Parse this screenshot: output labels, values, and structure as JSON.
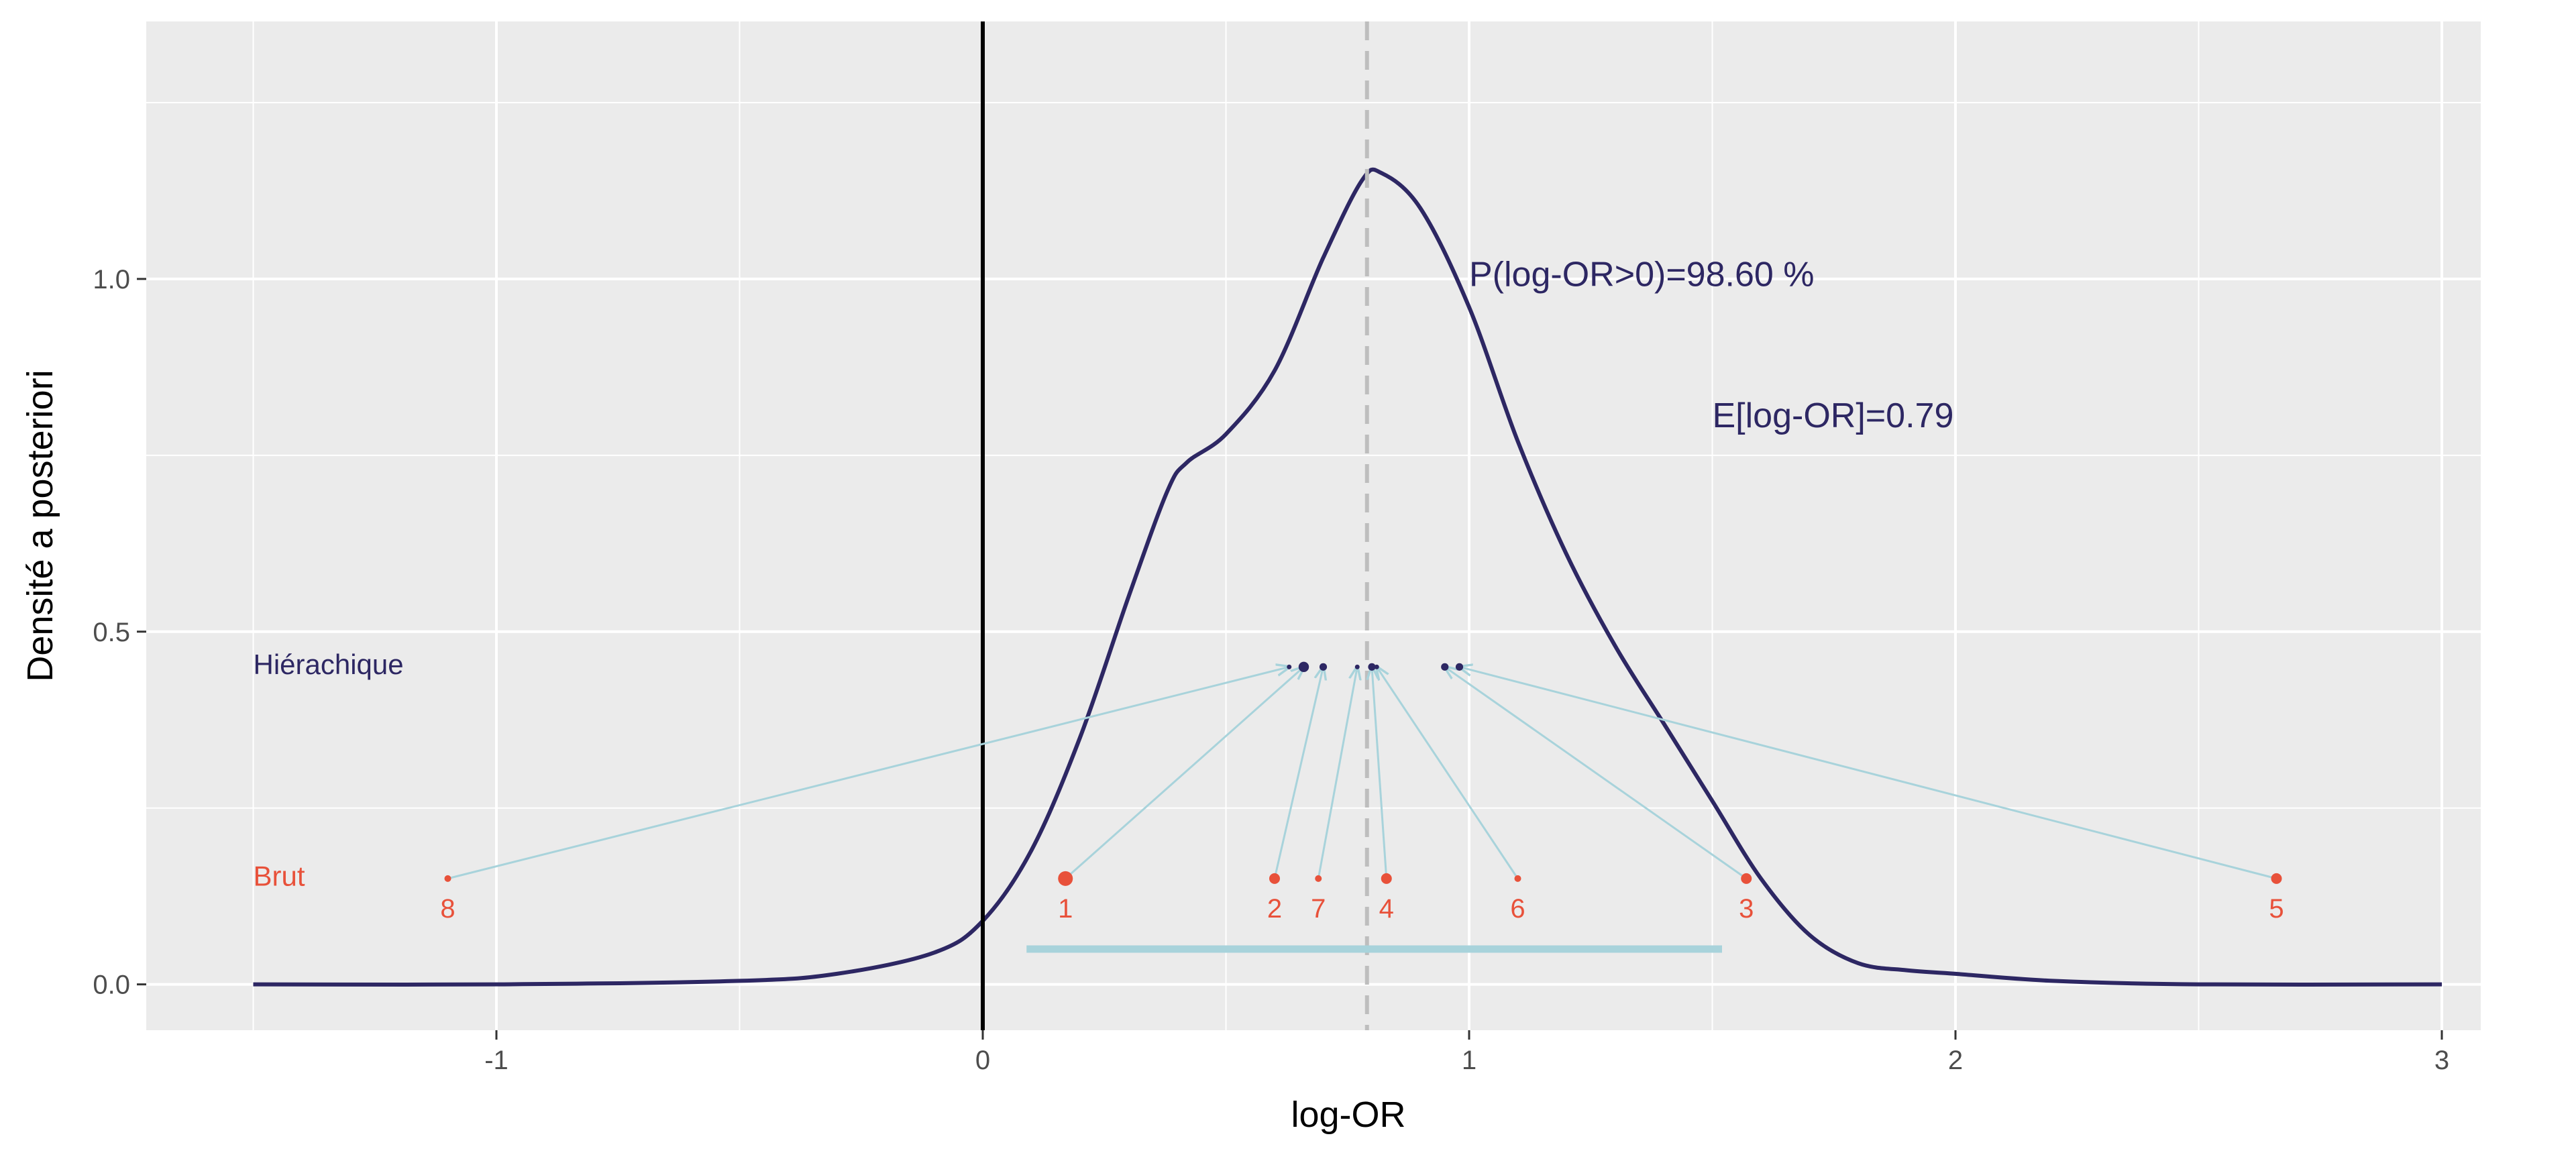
{
  "colors": {
    "panel_bg": "#ebebeb",
    "grid": "#ffffff",
    "density": "#2d2763",
    "raw": "#e8513a",
    "arrows": "#a8d3db",
    "interval": "#a8d3db",
    "mean_line": "#bebebe",
    "zero_line": "#000000"
  },
  "chart_data": {
    "type": "line",
    "xlabel": "log-OR",
    "ylabel": "Densité a posteriori",
    "xlim": [
      -1.72,
      3.08
    ],
    "ylim": [
      -0.065,
      1.365
    ],
    "x_ticks": [
      -1,
      0,
      1,
      2,
      3
    ],
    "x_tick_labels": [
      "-1",
      "0",
      "1",
      "2",
      "3"
    ],
    "y_ticks": [
      0.0,
      0.5,
      1.0
    ],
    "y_tick_labels": [
      "0.0",
      "0.5",
      "1.0"
    ],
    "grid": true,
    "density_curve": {
      "x": [
        -1.5,
        -1.0,
        -0.5,
        -0.3,
        -0.1,
        0.0,
        0.1,
        0.2,
        0.3,
        0.38,
        0.42,
        0.5,
        0.6,
        0.7,
        0.78,
        0.82,
        0.9,
        1.0,
        1.1,
        1.2,
        1.3,
        1.4,
        1.5,
        1.6,
        1.7,
        1.8,
        1.9,
        2.0,
        2.2,
        2.5,
        3.0
      ],
      "y": [
        0.0,
        0.0,
        0.005,
        0.015,
        0.045,
        0.09,
        0.19,
        0.35,
        0.55,
        0.7,
        0.74,
        0.78,
        0.87,
        1.03,
        1.14,
        1.15,
        1.1,
        0.96,
        0.77,
        0.61,
        0.48,
        0.37,
        0.26,
        0.15,
        0.07,
        0.03,
        0.02,
        0.015,
        0.005,
        0.0,
        0.0
      ]
    },
    "zero_line_x": 0,
    "posterior_mean_x": 0.79,
    "interval": {
      "from": 0.09,
      "to": 1.52,
      "y": 0.05
    },
    "raw_y": 0.15,
    "hierarchical_y": 0.45,
    "studies": [
      {
        "label": "1",
        "raw": 0.17,
        "shrunk": 0.66,
        "size": 3
      },
      {
        "label": "2",
        "raw": 0.6,
        "shrunk": 0.7,
        "size": 2
      },
      {
        "label": "3",
        "raw": 1.57,
        "shrunk": 0.95,
        "size": 2
      },
      {
        "label": "4",
        "raw": 0.83,
        "shrunk": 0.8,
        "size": 2
      },
      {
        "label": "5",
        "raw": 2.66,
        "shrunk": 0.98,
        "size": 2
      },
      {
        "label": "6",
        "raw": 1.1,
        "shrunk": 0.81,
        "size": 1
      },
      {
        "label": "7",
        "raw": 0.69,
        "shrunk": 0.77,
        "size": 1
      },
      {
        "label": "8",
        "raw": -1.1,
        "shrunk": 0.63,
        "size": 1
      }
    ],
    "row_labels": {
      "raw": "Brut",
      "hierarchical": "Hiérachique"
    },
    "annotations": {
      "prob_positive": {
        "text": "P(log-OR>0)=98.60 %",
        "x": 1.0,
        "y": 0.99
      },
      "expected": {
        "text": "E[log-OR]=0.79",
        "x": 1.5,
        "y": 0.79
      }
    }
  }
}
